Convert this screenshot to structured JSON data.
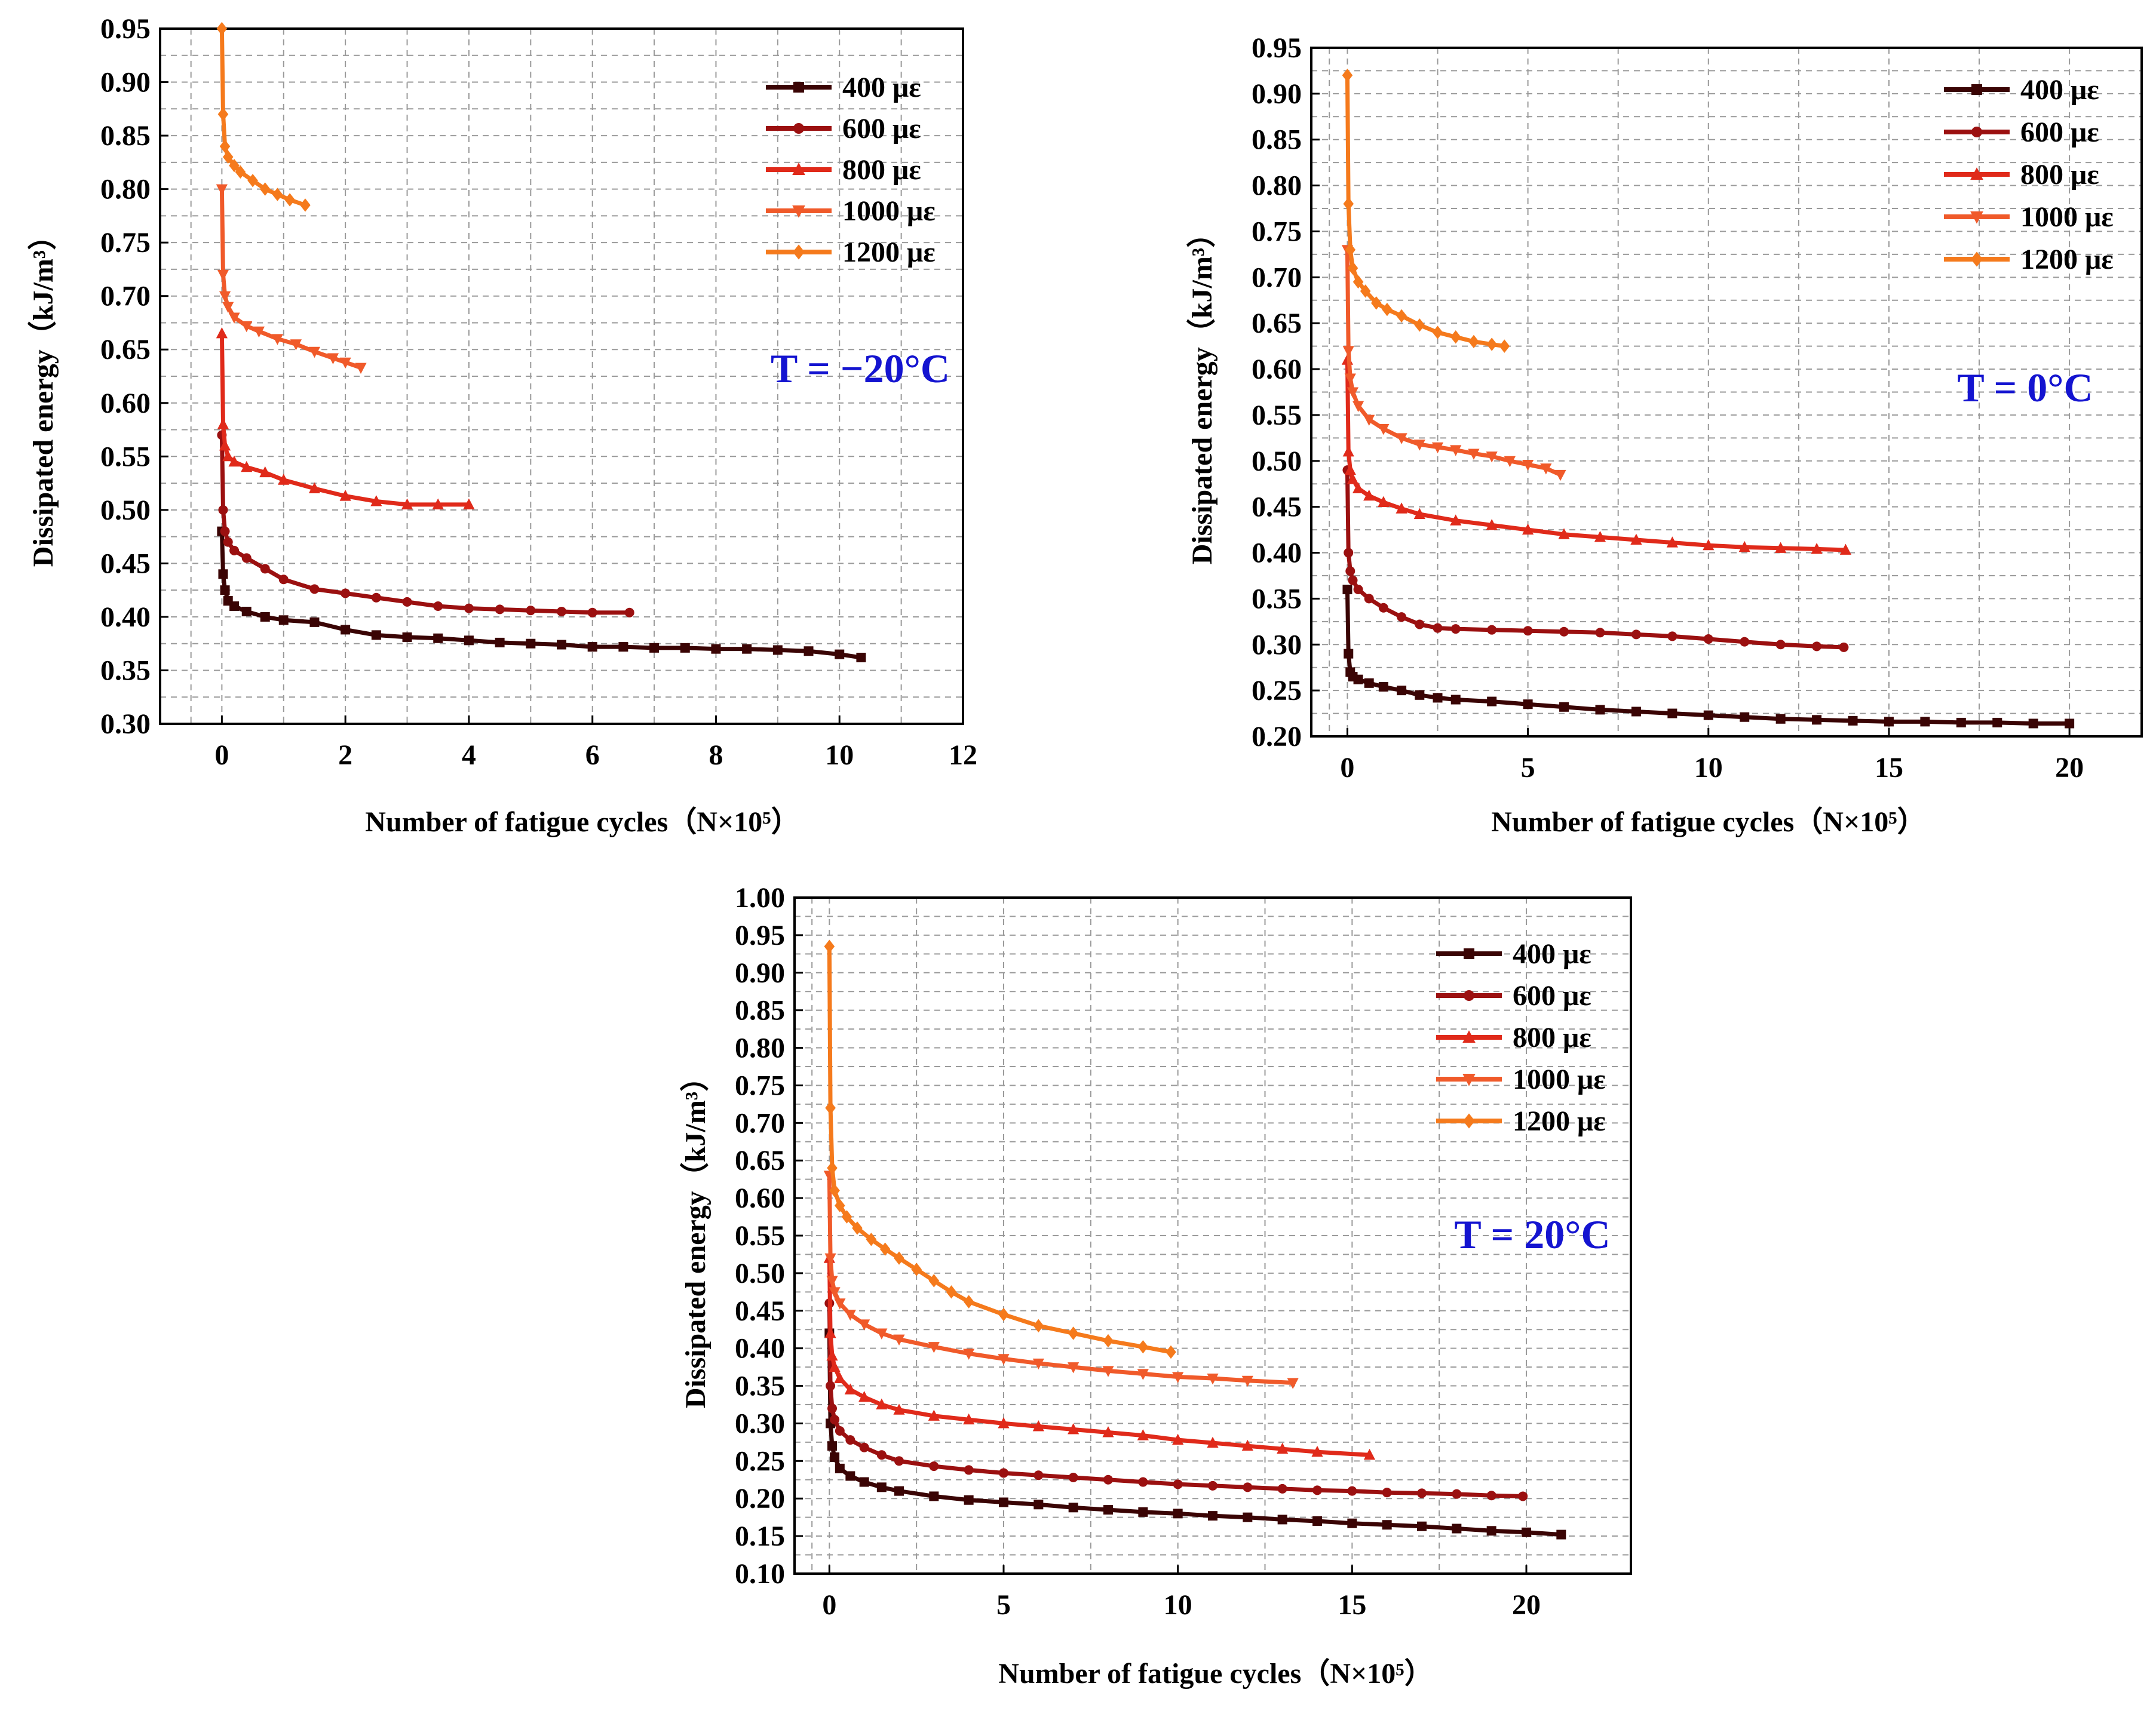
{
  "figure": {
    "legend_unit": "με",
    "colors": {
      "s400": "#3a0404",
      "s600": "#9b1010",
      "s800": "#e02a1a",
      "s1000": "#f05a2a",
      "s1200": "#f57a1c",
      "temp_text": "#1414d0"
    }
  },
  "chart_data": [
    {
      "type": "line",
      "title": "T = −20°C",
      "xlabel": "Number of fatigue cycles（N×10⁵）",
      "ylabel": "Dissipated energy（kJ/m³）",
      "xlim": [
        -1,
        12
      ],
      "ylim": [
        0.3,
        0.95
      ],
      "xticks": [
        0,
        2,
        4,
        6,
        8,
        10,
        12
      ],
      "yticks": [
        0.3,
        0.35,
        0.4,
        0.45,
        0.5,
        0.55,
        0.6,
        0.65,
        0.7,
        0.75,
        0.8,
        0.85,
        0.9,
        0.95
      ],
      "legend_position": "top-right",
      "series": [
        {
          "name": "400 με",
          "color": "#3a0404",
          "marker": "square",
          "x": [
            0,
            0.02,
            0.05,
            0.1,
            0.2,
            0.4,
            0.7,
            1.0,
            1.5,
            2.0,
            2.5,
            3.0,
            3.5,
            4.0,
            4.5,
            5.0,
            5.5,
            6.0,
            6.5,
            7.0,
            7.5,
            8.0,
            8.5,
            9.0,
            9.5,
            10.0,
            10.35
          ],
          "y": [
            0.48,
            0.44,
            0.425,
            0.415,
            0.41,
            0.405,
            0.4,
            0.397,
            0.395,
            0.388,
            0.383,
            0.381,
            0.38,
            0.378,
            0.376,
            0.375,
            0.374,
            0.372,
            0.372,
            0.371,
            0.371,
            0.37,
            0.37,
            0.369,
            0.368,
            0.365,
            0.362
          ]
        },
        {
          "name": "600 με",
          "color": "#9b1010",
          "marker": "circle",
          "x": [
            0,
            0.02,
            0.05,
            0.1,
            0.2,
            0.4,
            0.7,
            1.0,
            1.5,
            2.0,
            2.5,
            3.0,
            3.5,
            4.0,
            4.5,
            5.0,
            5.5,
            6.0,
            6.6
          ],
          "y": [
            0.57,
            0.5,
            0.48,
            0.47,
            0.462,
            0.455,
            0.445,
            0.435,
            0.426,
            0.422,
            0.418,
            0.414,
            0.41,
            0.408,
            0.407,
            0.406,
            0.405,
            0.404,
            0.404
          ]
        },
        {
          "name": "800 με",
          "color": "#e02a1a",
          "marker": "triangle-up",
          "x": [
            0,
            0.02,
            0.05,
            0.1,
            0.2,
            0.4,
            0.7,
            1.0,
            1.5,
            2.0,
            2.5,
            3.0,
            3.5,
            4.0
          ],
          "y": [
            0.665,
            0.58,
            0.56,
            0.55,
            0.545,
            0.54,
            0.535,
            0.528,
            0.52,
            0.513,
            0.508,
            0.505,
            0.505,
            0.505
          ]
        },
        {
          "name": "1000 με",
          "color": "#f05a2a",
          "marker": "triangle-down",
          "x": [
            0,
            0.02,
            0.05,
            0.1,
            0.2,
            0.4,
            0.6,
            0.9,
            1.2,
            1.5,
            1.8,
            2.0,
            2.25
          ],
          "y": [
            0.8,
            0.72,
            0.7,
            0.69,
            0.68,
            0.672,
            0.667,
            0.66,
            0.655,
            0.648,
            0.642,
            0.638,
            0.633
          ]
        },
        {
          "name": "1200 με",
          "color": "#f57a1c",
          "marker": "diamond",
          "x": [
            0,
            0.02,
            0.05,
            0.1,
            0.2,
            0.3,
            0.5,
            0.7,
            0.9,
            1.1,
            1.35
          ],
          "y": [
            0.95,
            0.87,
            0.84,
            0.83,
            0.822,
            0.816,
            0.808,
            0.8,
            0.795,
            0.79,
            0.785
          ]
        }
      ]
    },
    {
      "type": "line",
      "title": "T = 0°C",
      "xlabel": "Number of fatigue cycles（N×10⁵）",
      "ylabel": "Dissipated energy（kJ/m³）",
      "xlim": [
        -1,
        22
      ],
      "ylim": [
        0.2,
        0.95
      ],
      "xticks": [
        0,
        5,
        10,
        15,
        20
      ],
      "yticks": [
        0.2,
        0.25,
        0.3,
        0.35,
        0.4,
        0.45,
        0.5,
        0.55,
        0.6,
        0.65,
        0.7,
        0.75,
        0.8,
        0.85,
        0.9,
        0.95
      ],
      "legend_position": "top-right",
      "series": [
        {
          "name": "400 με",
          "color": "#3a0404",
          "marker": "square",
          "x": [
            0,
            0.03,
            0.08,
            0.15,
            0.3,
            0.6,
            1.0,
            1.5,
            2.0,
            2.5,
            3.0,
            4.0,
            5.0,
            6.0,
            7.0,
            8.0,
            9.0,
            10.0,
            11.0,
            12.0,
            13.0,
            14.0,
            15.0,
            16.0,
            17.0,
            18.0,
            19.0,
            20.0
          ],
          "y": [
            0.36,
            0.29,
            0.27,
            0.265,
            0.262,
            0.258,
            0.254,
            0.25,
            0.245,
            0.242,
            0.24,
            0.238,
            0.235,
            0.232,
            0.229,
            0.227,
            0.225,
            0.223,
            0.221,
            0.219,
            0.218,
            0.217,
            0.216,
            0.216,
            0.215,
            0.215,
            0.214,
            0.214
          ]
        },
        {
          "name": "600 με",
          "color": "#9b1010",
          "marker": "circle",
          "x": [
            0,
            0.03,
            0.08,
            0.15,
            0.3,
            0.6,
            1.0,
            1.5,
            2.0,
            2.5,
            3.0,
            4.0,
            5.0,
            6.0,
            7.0,
            8.0,
            9.0,
            10.0,
            11.0,
            12.0,
            13.0,
            13.75
          ],
          "y": [
            0.49,
            0.4,
            0.38,
            0.37,
            0.36,
            0.35,
            0.34,
            0.33,
            0.322,
            0.318,
            0.317,
            0.316,
            0.315,
            0.314,
            0.313,
            0.311,
            0.309,
            0.306,
            0.303,
            0.3,
            0.298,
            0.297
          ]
        },
        {
          "name": "800 με",
          "color": "#e02a1a",
          "marker": "triangle-up",
          "x": [
            0,
            0.03,
            0.08,
            0.15,
            0.3,
            0.6,
            1.0,
            1.5,
            2.0,
            3.0,
            4.0,
            5.0,
            6.0,
            7.0,
            8.0,
            9.0,
            10.0,
            11.0,
            12.0,
            13.0,
            13.8
          ],
          "y": [
            0.61,
            0.51,
            0.49,
            0.48,
            0.47,
            0.462,
            0.455,
            0.448,
            0.442,
            0.435,
            0.43,
            0.425,
            0.42,
            0.417,
            0.414,
            0.411,
            0.408,
            0.406,
            0.405,
            0.404,
            0.403
          ]
        },
        {
          "name": "1000 με",
          "color": "#f05a2a",
          "marker": "triangle-down",
          "x": [
            0,
            0.03,
            0.08,
            0.15,
            0.3,
            0.6,
            1.0,
            1.5,
            2.0,
            2.5,
            3.0,
            3.5,
            4.0,
            4.5,
            5.0,
            5.5,
            5.9
          ],
          "y": [
            0.73,
            0.62,
            0.59,
            0.575,
            0.56,
            0.545,
            0.535,
            0.525,
            0.518,
            0.515,
            0.512,
            0.508,
            0.505,
            0.5,
            0.496,
            0.492,
            0.485
          ]
        },
        {
          "name": "1200 με",
          "color": "#f57a1c",
          "marker": "diamond",
          "x": [
            0,
            0.03,
            0.08,
            0.15,
            0.3,
            0.5,
            0.8,
            1.1,
            1.5,
            2.0,
            2.5,
            3.0,
            3.5,
            4.0,
            4.35
          ],
          "y": [
            0.92,
            0.78,
            0.73,
            0.71,
            0.695,
            0.685,
            0.672,
            0.665,
            0.658,
            0.648,
            0.64,
            0.635,
            0.63,
            0.627,
            0.625
          ]
        }
      ]
    },
    {
      "type": "line",
      "title": "T = 20°C",
      "xlabel": "Number of fatigue cycles（N×10⁵）",
      "ylabel": "Dissipated energy（kJ/m³）",
      "xlim": [
        -1,
        23
      ],
      "ylim": [
        0.1,
        1.0
      ],
      "xticks": [
        0,
        5,
        10,
        15,
        20
      ],
      "yticks": [
        0.1,
        0.15,
        0.2,
        0.25,
        0.3,
        0.35,
        0.4,
        0.45,
        0.5,
        0.55,
        0.6,
        0.65,
        0.7,
        0.75,
        0.8,
        0.85,
        0.9,
        0.95,
        1.0
      ],
      "legend_position": "top-right",
      "series": [
        {
          "name": "400 με",
          "color": "#3a0404",
          "marker": "square",
          "x": [
            0,
            0.03,
            0.08,
            0.15,
            0.3,
            0.6,
            1.0,
            1.5,
            2.0,
            3.0,
            4.0,
            5.0,
            6.0,
            7.0,
            8.0,
            9.0,
            10.0,
            11.0,
            12.0,
            13.0,
            14.0,
            15.0,
            16.0,
            17.0,
            18.0,
            19.0,
            20.0,
            21.0
          ],
          "y": [
            0.42,
            0.3,
            0.27,
            0.255,
            0.24,
            0.23,
            0.222,
            0.215,
            0.21,
            0.203,
            0.198,
            0.195,
            0.192,
            0.188,
            0.185,
            0.182,
            0.18,
            0.177,
            0.175,
            0.172,
            0.17,
            0.167,
            0.165,
            0.163,
            0.16,
            0.157,
            0.155,
            0.152
          ]
        },
        {
          "name": "600 με",
          "color": "#9b1010",
          "marker": "circle",
          "x": [
            0,
            0.03,
            0.08,
            0.15,
            0.3,
            0.6,
            1.0,
            1.5,
            2.0,
            3.0,
            4.0,
            5.0,
            6.0,
            7.0,
            8.0,
            9.0,
            10.0,
            11.0,
            12.0,
            13.0,
            14.0,
            15.0,
            16.0,
            17.0,
            18.0,
            19.0,
            19.9
          ],
          "y": [
            0.46,
            0.35,
            0.32,
            0.305,
            0.29,
            0.278,
            0.268,
            0.258,
            0.25,
            0.243,
            0.238,
            0.234,
            0.231,
            0.228,
            0.225,
            0.222,
            0.219,
            0.217,
            0.215,
            0.213,
            0.211,
            0.21,
            0.208,
            0.207,
            0.206,
            0.204,
            0.203
          ]
        },
        {
          "name": "800 με",
          "color": "#e02a1a",
          "marker": "triangle-up",
          "x": [
            0,
            0.03,
            0.08,
            0.15,
            0.3,
            0.6,
            1.0,
            1.5,
            2.0,
            3.0,
            4.0,
            5.0,
            6.0,
            7.0,
            8.0,
            9.0,
            10.0,
            11.0,
            12.0,
            13.0,
            14.0,
            15.5
          ],
          "y": [
            0.52,
            0.42,
            0.39,
            0.375,
            0.36,
            0.345,
            0.335,
            0.325,
            0.318,
            0.31,
            0.305,
            0.3,
            0.296,
            0.292,
            0.288,
            0.284,
            0.278,
            0.274,
            0.27,
            0.266,
            0.262,
            0.258
          ]
        },
        {
          "name": "1000 με",
          "color": "#f05a2a",
          "marker": "triangle-down",
          "x": [
            0,
            0.03,
            0.08,
            0.15,
            0.3,
            0.6,
            1.0,
            1.5,
            2.0,
            3.0,
            4.0,
            5.0,
            6.0,
            7.0,
            8.0,
            9.0,
            10.0,
            11.0,
            12.0,
            13.3
          ],
          "y": [
            0.63,
            0.52,
            0.49,
            0.475,
            0.46,
            0.445,
            0.432,
            0.42,
            0.412,
            0.402,
            0.393,
            0.386,
            0.38,
            0.375,
            0.37,
            0.366,
            0.362,
            0.36,
            0.357,
            0.354
          ]
        },
        {
          "name": "1200 με",
          "color": "#f57a1c",
          "marker": "diamond",
          "x": [
            0,
            0.03,
            0.08,
            0.15,
            0.3,
            0.5,
            0.8,
            1.2,
            1.6,
            2.0,
            2.5,
            3.0,
            3.5,
            4.0,
            5.0,
            6.0,
            7.0,
            8.0,
            9.0,
            9.8
          ],
          "y": [
            0.935,
            0.72,
            0.64,
            0.61,
            0.59,
            0.575,
            0.56,
            0.545,
            0.532,
            0.52,
            0.505,
            0.49,
            0.475,
            0.462,
            0.445,
            0.43,
            0.42,
            0.41,
            0.402,
            0.395
          ]
        }
      ]
    }
  ]
}
